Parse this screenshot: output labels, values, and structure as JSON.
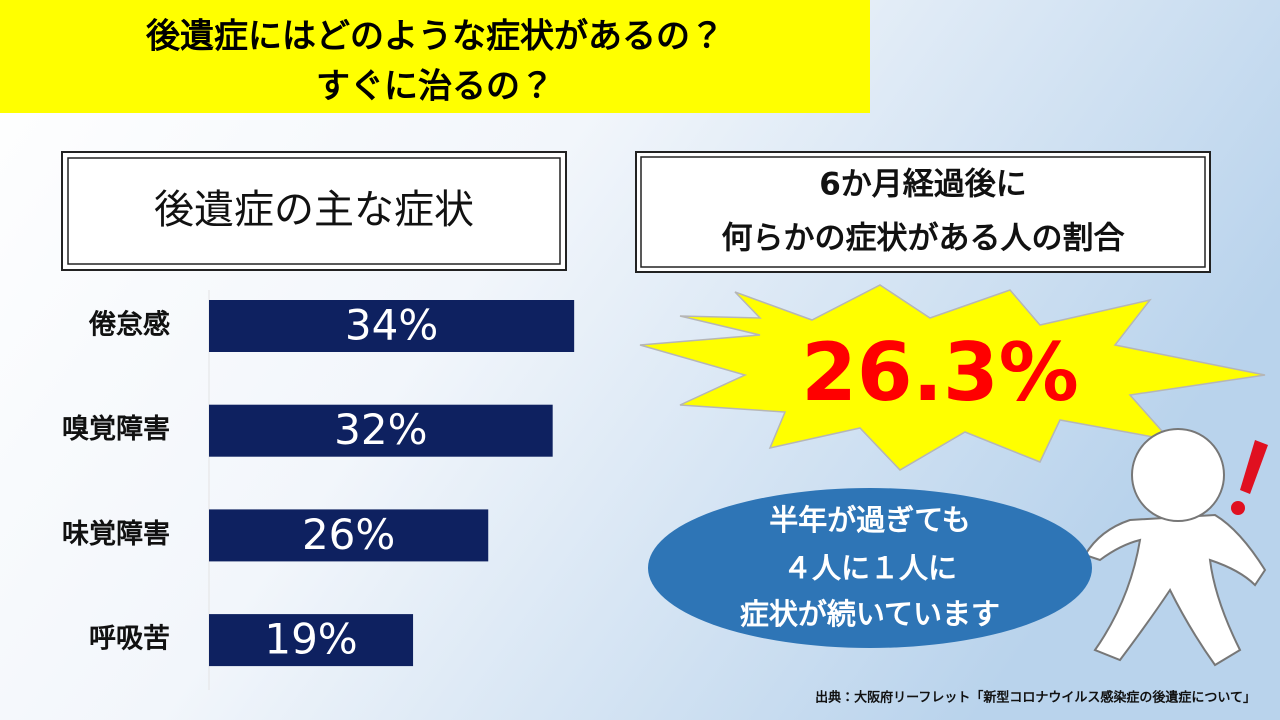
{
  "header": {
    "title_lines": [
      "後遺症にはどのような症状があるの？",
      "すぐに治るの？"
    ]
  },
  "chart_data": {
    "type": "bar",
    "orientation": "horizontal",
    "title": "後遺症の主な症状",
    "categories": [
      "倦怠感",
      "嗅覚障害",
      "味覚障害",
      "呼吸苦"
    ],
    "values": [
      34,
      32,
      26,
      19
    ],
    "value_labels": [
      "34%",
      "32%",
      "26%",
      "19%"
    ],
    "color": "#0e2160",
    "xlim": [
      0,
      40
    ]
  },
  "stat_panel": {
    "heading_lines": [
      "6か月経過後に",
      "何らかの症状がある人の割合"
    ],
    "value": "26.3%",
    "message_lines": [
      "半年が過ぎても",
      "４人に１人に",
      "症状が続いています"
    ]
  },
  "source": "出典：大阪府リーフレット「新型コロナウイルス感染症の後遺症について」"
}
